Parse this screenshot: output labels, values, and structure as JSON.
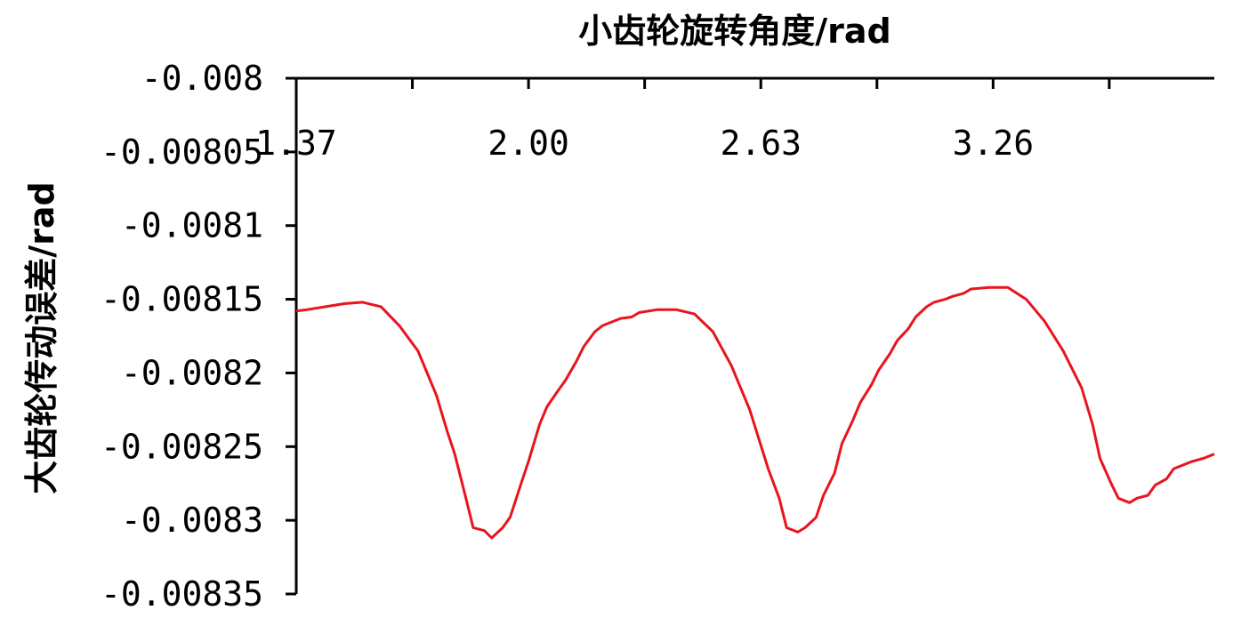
{
  "chart_data": {
    "type": "line",
    "title": "",
    "xlabel": "小齿轮旋转角度/rad",
    "ylabel": "大齿轮传动误差/rad",
    "x_axis_position": "top",
    "xlim": [
      1.37,
      3.86
    ],
    "x_ticks": [
      1.37,
      2.0,
      2.63,
      3.26
    ],
    "x_tick_labels": [
      "1.37",
      "2.00",
      "2.63",
      "3.26"
    ],
    "ylim": [
      -0.00835,
      -0.008
    ],
    "y_ticks": [
      -0.008,
      -0.00805,
      -0.0081,
      -0.00815,
      -0.0082,
      -0.00825,
      -0.0083,
      -0.00835
    ],
    "y_tick_labels": [
      "-0.008",
      "-0.00805",
      "-0.0081",
      "-0.00815",
      "-0.0082",
      "-0.00825",
      "-0.0083",
      "-0.00835"
    ],
    "grid": false,
    "series": [
      {
        "color": "#e8141e",
        "x": [
          1.37,
          1.4,
          1.45,
          1.5,
          1.55,
          1.6,
          1.65,
          1.7,
          1.72,
          1.75,
          1.78,
          1.8,
          1.83,
          1.85,
          1.88,
          1.9,
          1.93,
          1.95,
          1.98,
          2.0,
          2.03,
          2.05,
          2.08,
          2.1,
          2.13,
          2.15,
          2.18,
          2.2,
          2.23,
          2.25,
          2.28,
          2.3,
          2.35,
          2.4,
          2.45,
          2.5,
          2.55,
          2.6,
          2.65,
          2.68,
          2.7,
          2.73,
          2.75,
          2.78,
          2.8,
          2.83,
          2.85,
          2.88,
          2.9,
          2.93,
          2.95,
          2.98,
          3.0,
          3.03,
          3.05,
          3.08,
          3.1,
          3.13,
          3.15,
          3.18,
          3.2,
          3.25,
          3.3,
          3.35,
          3.4,
          3.45,
          3.5,
          3.53,
          3.55,
          3.58,
          3.6,
          3.63,
          3.65,
          3.68,
          3.7,
          3.73,
          3.75,
          3.78,
          3.8,
          3.83,
          3.86
        ],
        "y": [
          -0.008158,
          -0.008157,
          -0.008155,
          -0.008153,
          -0.008152,
          -0.008155,
          -0.008168,
          -0.008185,
          -0.008197,
          -0.008215,
          -0.00824,
          -0.008255,
          -0.008285,
          -0.008305,
          -0.008307,
          -0.008312,
          -0.008305,
          -0.008298,
          -0.008275,
          -0.00826,
          -0.008235,
          -0.008223,
          -0.008212,
          -0.008205,
          -0.008192,
          -0.008182,
          -0.008172,
          -0.008168,
          -0.008165,
          -0.008163,
          -0.008162,
          -0.008159,
          -0.008157,
          -0.008157,
          -0.00816,
          -0.008172,
          -0.008195,
          -0.008225,
          -0.008265,
          -0.008285,
          -0.008305,
          -0.008308,
          -0.008305,
          -0.008298,
          -0.008283,
          -0.008268,
          -0.008248,
          -0.008232,
          -0.00822,
          -0.008208,
          -0.008198,
          -0.008187,
          -0.008178,
          -0.00817,
          -0.008162,
          -0.008155,
          -0.008152,
          -0.00815,
          -0.008148,
          -0.008146,
          -0.008143,
          -0.008142,
          -0.008142,
          -0.00815,
          -0.008165,
          -0.008185,
          -0.00821,
          -0.008235,
          -0.008258,
          -0.008275,
          -0.008285,
          -0.008288,
          -0.008285,
          -0.008283,
          -0.008276,
          -0.008272,
          -0.008265,
          -0.008262,
          -0.00826,
          -0.008258,
          -0.008255
        ]
      }
    ]
  }
}
